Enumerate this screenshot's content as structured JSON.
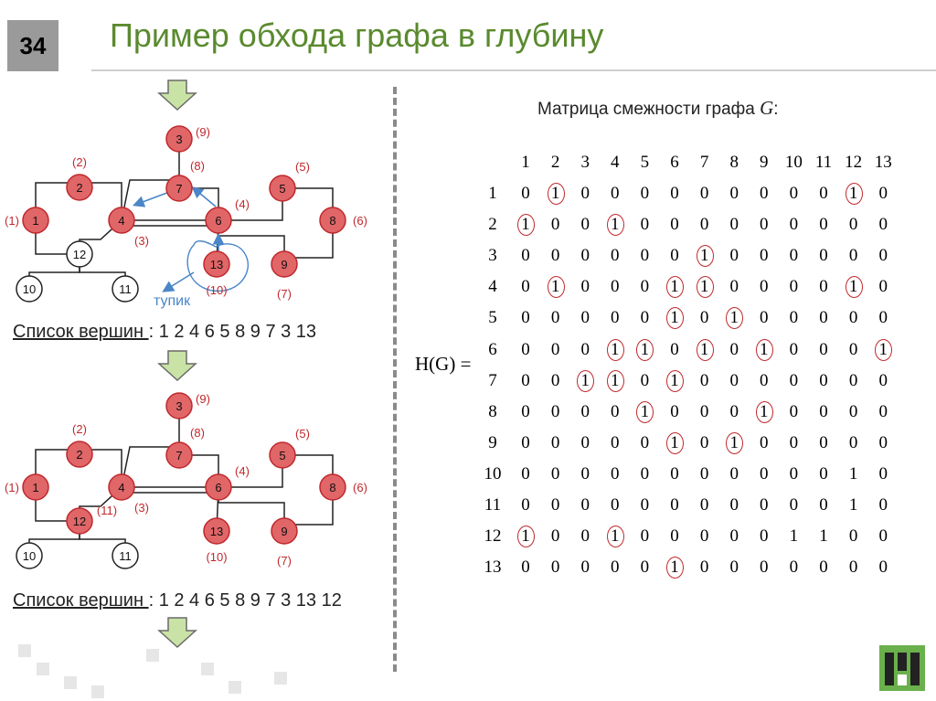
{
  "slide_number": "34",
  "title": "Пример обхода графа в глубину",
  "list_label": "Список вершин ",
  "list1_values": ": 1 2 4 6 5 8 9 7 3 13",
  "list2_values": ": 1 2 4 6 5 8 9 7 3 13 12",
  "dead_end_label": "тупик",
  "matrix_title": "Матрица смежности графа ",
  "matrix_title_var": "G",
  "matrix_title_colon": ":",
  "matrix_label": "H(G) =",
  "colors": {
    "title": "#5a8a2e",
    "node_fill": "#e06668",
    "node_stroke": "#c0282c",
    "arrow": "#4a86c8",
    "highlight": "#c0282c"
  },
  "graph1": {
    "nodes": [
      {
        "id": "3",
        "order": "(9)",
        "visited": true
      },
      {
        "id": "2",
        "order": "(2)",
        "visited": true
      },
      {
        "id": "7",
        "order": "(8)",
        "visited": true
      },
      {
        "id": "5",
        "order": "(5)",
        "visited": true
      },
      {
        "id": "1",
        "order": "(1)",
        "visited": true
      },
      {
        "id": "4",
        "order": "(3)",
        "visited": true
      },
      {
        "id": "6",
        "order": "(4)",
        "visited": true
      },
      {
        "id": "8",
        "order": "(6)",
        "visited": true
      },
      {
        "id": "12",
        "order": "",
        "visited": false
      },
      {
        "id": "13",
        "order": "(10)",
        "visited": true
      },
      {
        "id": "9",
        "order": "(7)",
        "visited": true
      },
      {
        "id": "10",
        "order": "",
        "visited": false
      },
      {
        "id": "11",
        "order": "",
        "visited": false
      }
    ]
  },
  "graph2": {
    "nodes": [
      {
        "id": "3",
        "order": "(9)",
        "visited": true
      },
      {
        "id": "2",
        "order": "(2)",
        "visited": true
      },
      {
        "id": "7",
        "order": "(8)",
        "visited": true
      },
      {
        "id": "5",
        "order": "(5)",
        "visited": true
      },
      {
        "id": "1",
        "order": "(1)",
        "visited": true
      },
      {
        "id": "4",
        "order": "(3)",
        "visited": true
      },
      {
        "id": "6",
        "order": "(4)",
        "visited": true
      },
      {
        "id": "8",
        "order": "(6)",
        "visited": true
      },
      {
        "id": "12",
        "order": "(11)",
        "visited": true
      },
      {
        "id": "13",
        "order": "(10)",
        "visited": true
      },
      {
        "id": "9",
        "order": "(7)",
        "visited": true
      },
      {
        "id": "10",
        "order": "",
        "visited": false
      },
      {
        "id": "11",
        "order": "",
        "visited": false
      }
    ]
  },
  "matrix": {
    "col_headers": [
      "1",
      "2",
      "3",
      "4",
      "5",
      "6",
      "7",
      "8",
      "9",
      "10",
      "11",
      "12",
      "13"
    ],
    "rows": [
      {
        "label": "1",
        "values": [
          0,
          1,
          0,
          0,
          0,
          0,
          0,
          0,
          0,
          0,
          0,
          1,
          0
        ],
        "circled": [
          2,
          12
        ]
      },
      {
        "label": "2",
        "values": [
          1,
          0,
          0,
          1,
          0,
          0,
          0,
          0,
          0,
          0,
          0,
          0,
          0
        ],
        "circled": [
          1,
          4
        ]
      },
      {
        "label": "3",
        "values": [
          0,
          0,
          0,
          0,
          0,
          0,
          1,
          0,
          0,
          0,
          0,
          0,
          0
        ],
        "circled": [
          7
        ]
      },
      {
        "label": "4",
        "values": [
          0,
          1,
          0,
          0,
          0,
          1,
          1,
          0,
          0,
          0,
          0,
          1,
          0
        ],
        "circled": [
          2,
          6,
          7,
          12
        ]
      },
      {
        "label": "5",
        "values": [
          0,
          0,
          0,
          0,
          0,
          1,
          0,
          1,
          0,
          0,
          0,
          0,
          0
        ],
        "circled": [
          6,
          8
        ]
      },
      {
        "label": "6",
        "values": [
          0,
          0,
          0,
          1,
          1,
          0,
          1,
          0,
          1,
          0,
          0,
          0,
          1
        ],
        "circled": [
          4,
          5,
          7,
          9,
          13
        ]
      },
      {
        "label": "7",
        "values": [
          0,
          0,
          1,
          1,
          0,
          1,
          0,
          0,
          0,
          0,
          0,
          0,
          0
        ],
        "circled": [
          3,
          4,
          6
        ]
      },
      {
        "label": "8",
        "values": [
          0,
          0,
          0,
          0,
          1,
          0,
          0,
          0,
          1,
          0,
          0,
          0,
          0
        ],
        "circled": [
          5,
          9
        ]
      },
      {
        "label": "9",
        "values": [
          0,
          0,
          0,
          0,
          0,
          1,
          0,
          1,
          0,
          0,
          0,
          0,
          0
        ],
        "circled": [
          6,
          8
        ]
      },
      {
        "label": "10",
        "values": [
          0,
          0,
          0,
          0,
          0,
          0,
          0,
          0,
          0,
          0,
          0,
          1,
          0
        ],
        "circled": []
      },
      {
        "label": "11",
        "values": [
          0,
          0,
          0,
          0,
          0,
          0,
          0,
          0,
          0,
          0,
          0,
          1,
          0
        ],
        "circled": []
      },
      {
        "label": "12",
        "values": [
          1,
          0,
          0,
          1,
          0,
          0,
          0,
          0,
          0,
          1,
          1,
          0,
          0
        ],
        "circled": [
          1,
          4
        ]
      },
      {
        "label": "13",
        "values": [
          0,
          0,
          0,
          0,
          0,
          1,
          0,
          0,
          0,
          0,
          0,
          0,
          0
        ],
        "circled": [
          6
        ]
      }
    ]
  }
}
